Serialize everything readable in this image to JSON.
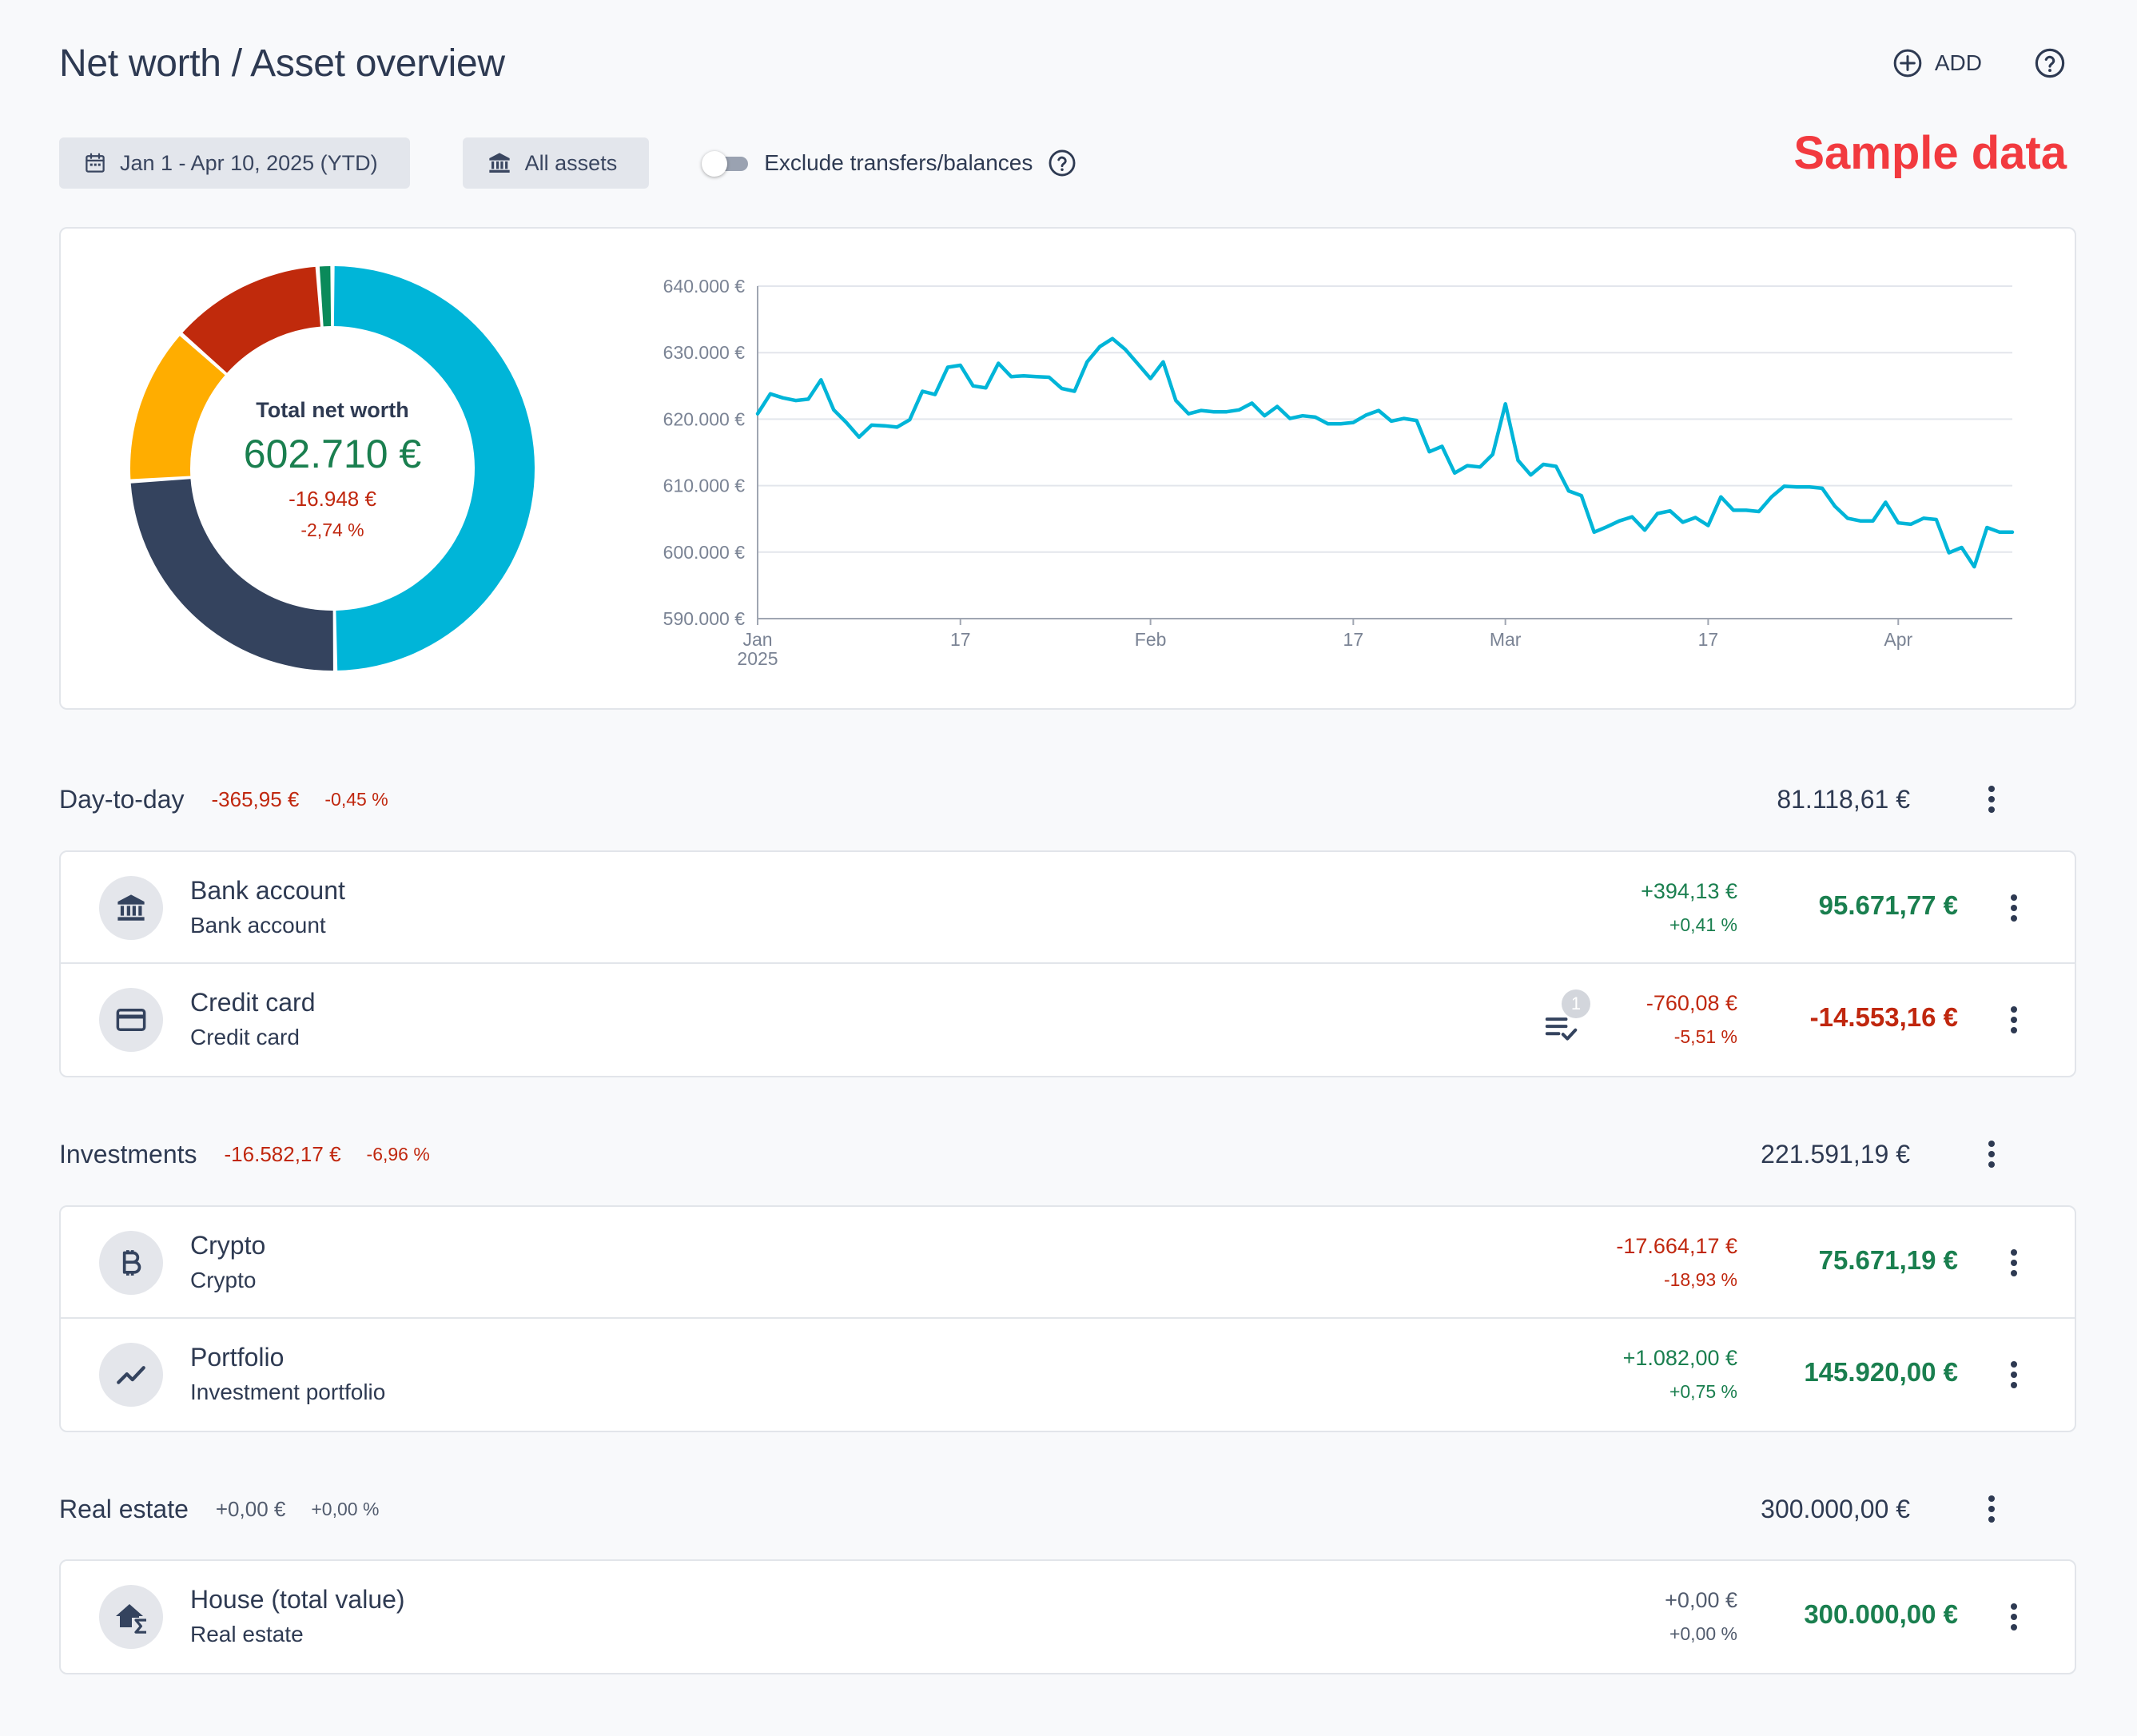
{
  "header": {
    "title": "Net worth / Asset overview",
    "add_label": "ADD"
  },
  "filters": {
    "date_range": "Jan 1 - Apr 10, 2025 (YTD)",
    "assets": "All assets",
    "exclude_label": "Exclude transfers/balances",
    "exclude_enabled": false
  },
  "watermark": "Sample data",
  "summary": {
    "label": "Total net worth",
    "value": "602.710 €",
    "change": "-16.948 €",
    "change_pct": "-2,74 %"
  },
  "colors": {
    "teal": "#00b5d8",
    "navy": "#34435e",
    "amber": "#ffad00",
    "red": "#c02a0c",
    "green": "#0a8a5a",
    "positive_text": "#1a7f4f",
    "negative_text": "#c0270e"
  },
  "chart_data": [
    {
      "type": "pie",
      "variant": "donut",
      "center_label": "Total net worth",
      "series": [
        {
          "color": "#00b5d8",
          "value": 300000
        },
        {
          "color": "#34435e",
          "value": 145920
        },
        {
          "color": "#ffad00",
          "value": 75671
        },
        {
          "color": "#c02a0c",
          "value": 74000
        },
        {
          "color": "#0a8a5a",
          "value": 7119
        }
      ]
    },
    {
      "type": "line",
      "color": "#00b5d8",
      "ylim": [
        590000,
        640000
      ],
      "yticks": [
        590000,
        600000,
        610000,
        620000,
        630000,
        640000
      ],
      "ytick_labels": [
        "590.000 €",
        "600.000 €",
        "610.000 €",
        "620.000 €",
        "630.000 €",
        "640.000 €"
      ],
      "xlim": [
        "2025-01-01",
        "2025-04-10"
      ],
      "xticks": [
        {
          "date": "2025-01-01",
          "label": "Jan",
          "sublabel": "2025"
        },
        {
          "date": "2025-01-17",
          "label": "17"
        },
        {
          "date": "2025-02-01",
          "label": "Feb"
        },
        {
          "date": "2025-02-17",
          "label": "17"
        },
        {
          "date": "2025-03-01",
          "label": "Mar"
        },
        {
          "date": "2025-03-17",
          "label": "17"
        },
        {
          "date": "2025-04-01",
          "label": "Apr"
        }
      ],
      "grid": true,
      "dates": [
        "2025-01-01",
        "2025-01-02",
        "2025-01-03",
        "2025-01-04",
        "2025-01-05",
        "2025-01-06",
        "2025-01-07",
        "2025-01-08",
        "2025-01-09",
        "2025-01-10",
        "2025-01-11",
        "2025-01-12",
        "2025-01-13",
        "2025-01-14",
        "2025-01-15",
        "2025-01-16",
        "2025-01-17",
        "2025-01-18",
        "2025-01-19",
        "2025-01-20",
        "2025-01-21",
        "2025-01-22",
        "2025-01-23",
        "2025-01-24",
        "2025-01-25",
        "2025-01-26",
        "2025-01-27",
        "2025-01-28",
        "2025-01-29",
        "2025-01-30",
        "2025-01-31",
        "2025-02-01",
        "2025-02-02",
        "2025-02-03",
        "2025-02-04",
        "2025-02-05",
        "2025-02-06",
        "2025-02-07",
        "2025-02-08",
        "2025-02-09",
        "2025-02-10",
        "2025-02-11",
        "2025-02-12",
        "2025-02-13",
        "2025-02-14",
        "2025-02-15",
        "2025-02-16",
        "2025-02-17",
        "2025-02-18",
        "2025-02-19",
        "2025-02-20",
        "2025-02-21",
        "2025-02-22",
        "2025-02-23",
        "2025-02-24",
        "2025-02-25",
        "2025-02-26",
        "2025-02-27",
        "2025-02-28",
        "2025-03-01",
        "2025-03-02",
        "2025-03-03",
        "2025-03-04",
        "2025-03-05",
        "2025-03-06",
        "2025-03-07",
        "2025-03-08",
        "2025-03-09",
        "2025-03-10",
        "2025-03-11",
        "2025-03-12",
        "2025-03-13",
        "2025-03-14",
        "2025-03-15",
        "2025-03-16",
        "2025-03-17",
        "2025-03-18",
        "2025-03-19",
        "2025-03-20",
        "2025-03-21",
        "2025-03-22",
        "2025-03-23",
        "2025-03-24",
        "2025-03-25",
        "2025-03-26",
        "2025-03-27",
        "2025-03-28",
        "2025-03-29",
        "2025-03-30",
        "2025-03-31",
        "2025-04-01",
        "2025-04-02",
        "2025-04-03",
        "2025-04-04",
        "2025-04-05",
        "2025-04-06",
        "2025-04-07",
        "2025-04-08",
        "2025-04-09",
        "2025-04-10"
      ],
      "values": [
        620800,
        623800,
        623200,
        622800,
        623000,
        625900,
        621400,
        619500,
        617300,
        619100,
        619000,
        618800,
        619900,
        624200,
        623700,
        627800,
        628100,
        625000,
        624700,
        628400,
        626400,
        626500,
        626400,
        626300,
        624600,
        624200,
        628600,
        630900,
        632100,
        630500,
        628300,
        626100,
        628600,
        622800,
        620800,
        621300,
        621100,
        621100,
        621400,
        622400,
        620500,
        621900,
        620100,
        620500,
        620300,
        619300,
        619300,
        619500,
        620600,
        621300,
        619700,
        620100,
        619800,
        615100,
        615900,
        611900,
        613000,
        612800,
        614700,
        622300,
        613800,
        611600,
        613200,
        612900,
        609200,
        608500,
        603000,
        603800,
        604700,
        605300,
        603300,
        605800,
        606200,
        604500,
        605200,
        604000,
        608300,
        606300,
        606300,
        606100,
        608300,
        609900,
        609800,
        609800,
        609600,
        606900,
        605100,
        604700,
        604700,
        607500,
        604400,
        604200,
        605100,
        604900,
        599900,
        600700,
        597800,
        603700,
        603000,
        603000
      ]
    }
  ],
  "groups": [
    {
      "name": "Day-to-day",
      "change": "-365,95 €",
      "change_pct": "-0,45 %",
      "total": "81.118,61 €",
      "items": [
        {
          "icon": "bank-icon",
          "title": "Bank account",
          "subtitle": "Bank account",
          "change": "+394,13 €",
          "change_pct": "+0,41 %",
          "value": "95.671,77 €"
        },
        {
          "icon": "credit-card-icon",
          "title": "Credit card",
          "subtitle": "Credit card",
          "change": "-760,08 €",
          "change_pct": "-5,51 %",
          "value": "-14.553,16 €",
          "pending_count": "1"
        }
      ]
    },
    {
      "name": "Investments",
      "change": "-16.582,17 €",
      "change_pct": "-6,96 %",
      "total": "221.591,19 €",
      "items": [
        {
          "icon": "bitcoin-icon",
          "title": "Crypto",
          "subtitle": "Crypto",
          "change": "-17.664,17 €",
          "change_pct": "-18,93 %",
          "value": "75.671,19 €"
        },
        {
          "icon": "trending-up-icon",
          "title": "Portfolio",
          "subtitle": "Investment portfolio",
          "change": "+1.082,00 €",
          "change_pct": "+0,75 %",
          "value": "145.920,00 €"
        }
      ]
    },
    {
      "name": "Real estate",
      "change": "+0,00 €",
      "change_pct": "+0,00 %",
      "total": "300.000,00 €",
      "items": [
        {
          "icon": "house-sum-icon",
          "title": "House (total value)",
          "subtitle": "Real estate",
          "change": "+0,00 €",
          "change_pct": "+0,00 %",
          "value": "300.000,00 €"
        }
      ]
    }
  ]
}
